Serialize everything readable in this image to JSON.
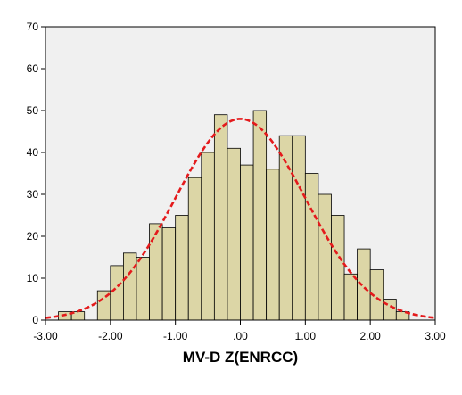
{
  "chart_data": {
    "type": "bar",
    "title": "",
    "xlabel": "MV-D Z(ENRCC)",
    "ylabel": "",
    "xlim": [
      -3.0,
      3.0
    ],
    "ylim": [
      0,
      70
    ],
    "x_ticks": [
      -3.0,
      -2.0,
      -1.0,
      0.0,
      1.0,
      2.0,
      3.0
    ],
    "x_tick_labels": [
      "-3.00",
      "-2.00",
      "-1.00",
      ".00",
      "1.00",
      "2.00",
      "3.00"
    ],
    "y_ticks": [
      0,
      10,
      20,
      30,
      40,
      50,
      60,
      70
    ],
    "y_tick_labels": [
      "0",
      "10",
      "20",
      "30",
      "40",
      "50",
      "60",
      "70"
    ],
    "bin_width": 0.2,
    "bins": [
      {
        "start": -2.8,
        "value": 2
      },
      {
        "start": -2.6,
        "value": 2
      },
      {
        "start": -2.2,
        "value": 7
      },
      {
        "start": -2.0,
        "value": 13
      },
      {
        "start": -1.8,
        "value": 16
      },
      {
        "start": -1.6,
        "value": 15
      },
      {
        "start": -1.4,
        "value": 23
      },
      {
        "start": -1.2,
        "value": 22
      },
      {
        "start": -1.0,
        "value": 25
      },
      {
        "start": -0.8,
        "value": 34
      },
      {
        "start": -0.6,
        "value": 40
      },
      {
        "start": -0.4,
        "value": 49
      },
      {
        "start": -0.2,
        "value": 41
      },
      {
        "start": 0.0,
        "value": 37
      },
      {
        "start": 0.2,
        "value": 50
      },
      {
        "start": 0.4,
        "value": 36
      },
      {
        "start": 0.6,
        "value": 44
      },
      {
        "start": 0.8,
        "value": 44
      },
      {
        "start": 1.0,
        "value": 35
      },
      {
        "start": 1.2,
        "value": 30
      },
      {
        "start": 1.4,
        "value": 25
      },
      {
        "start": 1.6,
        "value": 11
      },
      {
        "start": 1.8,
        "value": 17
      },
      {
        "start": 2.0,
        "value": 12
      },
      {
        "start": 2.2,
        "value": 5
      },
      {
        "start": 2.4,
        "value": 2
      }
    ],
    "normal_curve": {
      "mean": 0.0,
      "sd": 1.0,
      "peak": 48,
      "color": "#e41a1c",
      "style": "dashed"
    },
    "colors": {
      "bar_fill": "#dcd6a6",
      "bar_stroke": "#000000",
      "plot_background": "#f0f0f0"
    },
    "grid": false
  }
}
